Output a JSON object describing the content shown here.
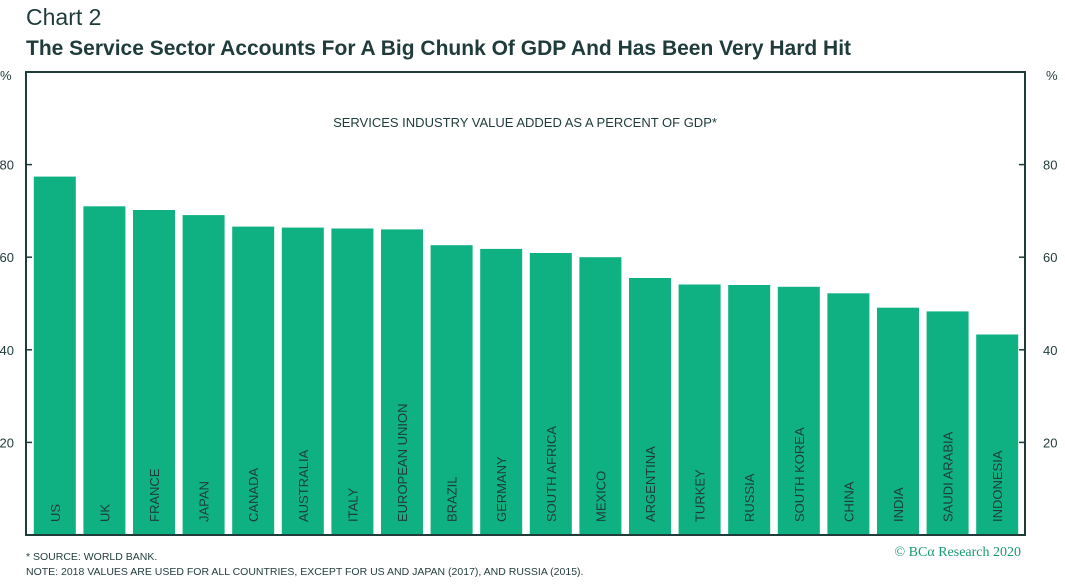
{
  "header": {
    "chart_number": "Chart 2",
    "title": "The Service Sector Accounts For A Big Chunk Of GDP And Has Been Very Hard Hit"
  },
  "chart_data": {
    "type": "bar",
    "title": "SERVICES INDUSTRY VALUE ADDED AS A PERCENT OF GDP*",
    "y_unit_left": "%",
    "y_unit_right": "%",
    "ylim": [
      0,
      100
    ],
    "yticks": [
      20,
      40,
      60,
      80
    ],
    "grid": false,
    "bar_color": "#0fb082",
    "categories": [
      "US",
      "UK",
      "FRANCE",
      "JAPAN",
      "CANADA",
      "AUSTRALIA",
      "ITALY",
      "EUROPEAN UNION",
      "BRAZIL",
      "GERMANY",
      "SOUTH AFRICA",
      "MEXICO",
      "ARGENTINA",
      "TURKEY",
      "RUSSIA",
      "SOUTH KOREA",
      "CHINA",
      "INDIA",
      "SAUDI ARABIA",
      "INDONESIA"
    ],
    "values": [
      77.4,
      71.0,
      70.2,
      69.1,
      66.6,
      66.4,
      66.2,
      66.0,
      62.6,
      61.8,
      60.9,
      60.0,
      55.5,
      54.1,
      54.0,
      53.6,
      52.2,
      49.1,
      48.3,
      43.3
    ]
  },
  "footer": {
    "source": "* SOURCE: WORLD BANK.",
    "note": "NOTE: 2018 VALUES ARE USED FOR ALL COUNTRIES, EXCEPT FOR US AND JAPAN (2017), AND RUSSIA (2015).",
    "copyright": "© BCα Research 2020"
  },
  "colors": {
    "text": "#1f3b3a",
    "frame": "#1f3b3a",
    "bars": "#0fb082",
    "copyright": "#1a9a74"
  }
}
